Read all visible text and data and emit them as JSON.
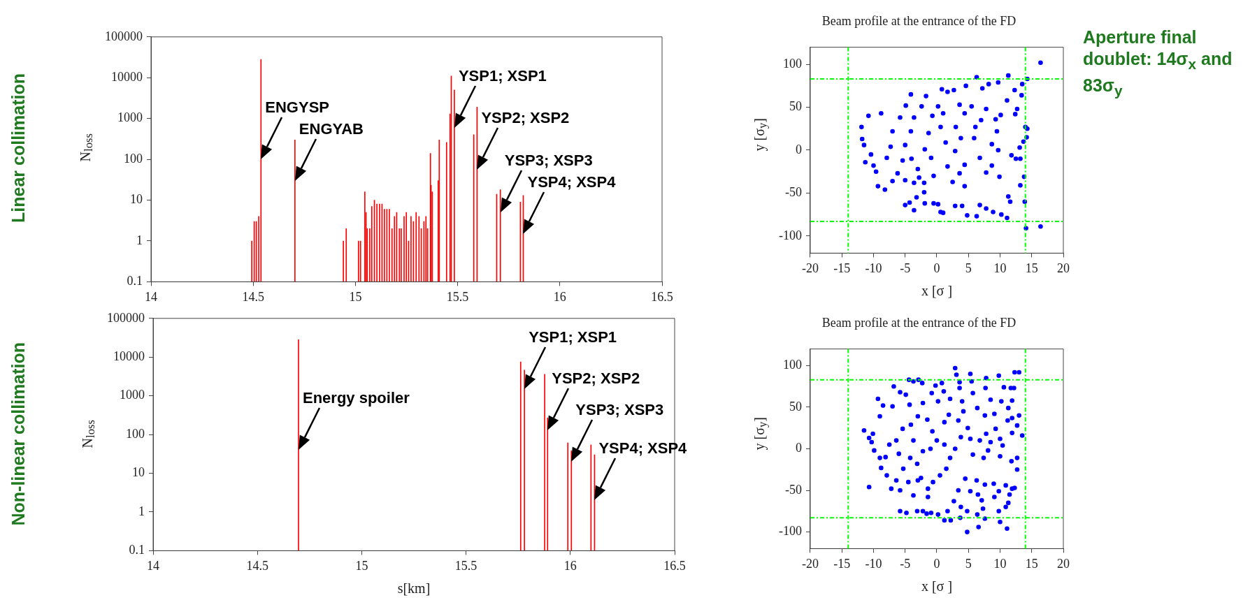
{
  "chart_data": [
    {
      "type": "bar",
      "ylabel": "N$_{loss}$",
      "log": true,
      "color": "#ff0000",
      "x": [
        14.493,
        14.505,
        14.515,
        14.527,
        14.538,
        14.704,
        14.941,
        14.955,
        15.015,
        15.025,
        15.046,
        15.052,
        15.058,
        15.07,
        15.08,
        15.093,
        15.105,
        15.118,
        15.13,
        15.142,
        15.154,
        15.166,
        15.179,
        15.191,
        15.202,
        15.215,
        15.224,
        15.238,
        15.249,
        15.26,
        15.272,
        15.284,
        15.297,
        15.311,
        15.322,
        15.335,
        15.345,
        15.353,
        15.367,
        15.37,
        15.376,
        15.405,
        15.41,
        15.446,
        15.463,
        15.469,
        15.484,
        15.579,
        15.595,
        15.691,
        15.709,
        15.807,
        15.821
      ],
      "values": [
        1,
        3,
        3,
        4,
        28000,
        300,
        1,
        2,
        1,
        1,
        16,
        5,
        2,
        2,
        7,
        10,
        8,
        8,
        8,
        6,
        6,
        6,
        2,
        4,
        5,
        2,
        2,
        4,
        5,
        1,
        4,
        3,
        5,
        4,
        2,
        3,
        4,
        2,
        140,
        23,
        16,
        30,
        300,
        260,
        1300,
        11000,
        5000,
        400,
        1900,
        14,
        18,
        9,
        13
      ],
      "xlim": [
        14,
        16.5
      ],
      "xticks": [
        14,
        14.5,
        15,
        15.5,
        16,
        16.5
      ],
      "ylim": [
        0.1,
        100000
      ],
      "yticks": [
        0.1,
        1,
        10,
        100,
        1000,
        10000,
        100000
      ],
      "annotations": [
        {
          "text": "ENGYSP",
          "x": 14.538,
          "y": 100
        },
        {
          "text": "ENGYAB",
          "x": 14.704,
          "y": 30
        },
        {
          "text": "YSP1; XSP1",
          "x": 15.484,
          "y": 600
        },
        {
          "text": "YSP2; XSP2",
          "x": 15.595,
          "y": 55
        },
        {
          "text": "YSP3; XSP3",
          "x": 15.709,
          "y": 5
        },
        {
          "text": "YSP4; XSP4",
          "x": 15.821,
          "y": 1.5
        },
        "Linear collimation"
      ]
    },
    {
      "type": "bar",
      "ylabel": "N$_{loss}$",
      "xlabel": "s[km]",
      "log": true,
      "color": "#ff0000",
      "x": [
        14.697,
        15.762,
        15.78,
        15.877,
        15.891,
        15.988,
        16.005,
        16.099,
        16.116
      ],
      "values": [
        28000,
        7500,
        4600,
        3600,
        270,
        61,
        38,
        54,
        30
      ],
      "xlim": [
        14,
        16.5
      ],
      "xticks": [
        14,
        14.5,
        15,
        15.5,
        16,
        16.5
      ],
      "ylim": [
        0.1,
        100000
      ],
      "yticks": [
        0.1,
        1,
        10,
        100,
        1000,
        10000,
        100000
      ],
      "annotations": [
        {
          "text": "Energy spoiler",
          "x": 14.697,
          "y": 40
        },
        {
          "text": "YSP1; XSP1",
          "x": 15.78,
          "y": 1500
        },
        {
          "text": "YSP2; XSP2",
          "x": 15.891,
          "y": 130
        },
        {
          "text": "YSP3; XSP3",
          "x": 16.005,
          "y": 20
        },
        {
          "text": "YSP4; XSP4",
          "x": 16.116,
          "y": 2
        },
        "Non-linear collimation"
      ]
    },
    {
      "type": "scatter",
      "title": "Beam profile at the entrance of the FD",
      "xlabel": "x [σ ]",
      "ylabel": "y [σ$_{y}$]",
      "color": "#0000ff",
      "marker": "circle",
      "x": [
        16.4,
        11.3,
        6.3,
        14.3,
        13.5,
        9.7,
        13.4,
        12.3,
        8.2,
        4.6,
        0.8,
        1.7,
        2.7,
        -4.1,
        -1.7,
        7.2,
        14,
        14.3,
        14.2,
        13.7,
        -11.9,
        -11.8,
        -11.5,
        -11.3,
        -10.8,
        -10.4,
        -10,
        -9.6,
        -9.3,
        -8.8,
        -8.2,
        -7,
        -6.2,
        -5,
        -4.3,
        -3.6,
        -3.2,
        -2,
        -1.9,
        -0.5,
        0.2,
        0.6,
        1,
        2.9,
        4,
        4.8,
        6.3,
        6.8,
        7.8,
        8.9,
        10.2,
        11.1,
        11.3,
        11.6,
        13.9,
        14.1,
        16.4,
        13.8,
        13.2,
        13.2,
        13.1,
        12.5,
        11.8,
        12.4,
        11.1,
        12.7,
        10.1,
        9.3,
        9.5,
        8.7,
        9.7,
        8.7,
        9.9,
        7.8,
        6.8,
        5.9,
        6.1,
        7,
        7.8,
        5.5,
        4.4,
        3.6,
        3,
        3.8,
        2.9,
        4.4,
        3.6,
        2.5,
        4.4,
        1.7,
        1.4,
        0.6,
        1,
        0.2,
        -0.7,
        -1.3,
        -1.9,
        -0.9,
        -0.5,
        -2,
        -3,
        -4,
        -5,
        -4.1,
        -3.6,
        -2.4,
        -4.9,
        -5.8,
        -7,
        -7.3,
        -7.9,
        -5.4,
        -5,
        -3.6,
        -2.8
      ],
      "values": [
        102,
        87,
        85,
        83,
        77,
        79,
        64,
        70,
        77,
        75,
        71,
        68,
        70,
        65,
        63,
        72,
        27,
        25,
        15,
        10,
        27,
        13,
        6,
        -14,
        40,
        -5,
        -18,
        -25,
        -42,
        43,
        -46,
        -36,
        -27,
        -64,
        -61,
        -70,
        -55,
        -49,
        -62,
        -62,
        -63,
        -72,
        -73,
        -65,
        -65,
        -76,
        -77,
        -64,
        -68,
        -72,
        -75,
        -79,
        -54,
        -60,
        -60,
        -91,
        -89,
        -31,
        -41,
        -10,
        3,
        -10,
        -6,
        42,
        58,
        48,
        41,
        36,
        22,
        7,
        0,
        -18,
        -31,
        -26,
        -9,
        14,
        27,
        35,
        48,
        51,
        43,
        53,
        27,
        14,
        -1,
        -17,
        -27,
        -37,
        -42,
        -19,
        9,
        27,
        43,
        51,
        40,
        20,
        1,
        -9,
        -30,
        -38,
        -22,
        -10,
        6,
        22,
        38,
        51,
        52,
        38,
        22,
        4,
        -9,
        -12,
        -35,
        -38,
        -32
      ],
      "xlim": [
        -20,
        20
      ],
      "xticks": [
        -20,
        -15,
        -10,
        -5,
        0,
        5,
        10,
        15,
        20
      ],
      "ylim": [
        -120,
        120
      ],
      "yticks": [
        -100,
        -50,
        0,
        50,
        100
      ],
      "ref_lines": [
        {
          "axis": "x",
          "value": -14,
          "color": "#00ff00",
          "line_style": "dashed"
        },
        {
          "axis": "x",
          "value": 14,
          "color": "#00ff00",
          "line_style": "dashed"
        },
        {
          "axis": "y",
          "value": 83,
          "color": "#00ff00",
          "line_style": "dashed"
        },
        {
          "axis": "y",
          "value": -83,
          "color": "#00ff00",
          "line_style": "dashed"
        }
      ],
      "annotations": [
        "Aperture final doublet: 14σ$_{x}$  and 83σ$_{y}$"
      ]
    },
    {
      "type": "scatter",
      "title": "Beam profile at the entrance of the FD",
      "xlabel": "x [σ ]",
      "ylabel": "y [σ$_{y}$]",
      "color": "#0000ff",
      "marker": "circle",
      "x": [
        2.9,
        3.1,
        5.3,
        5.5,
        7.8,
        9.8,
        12.3,
        13,
        -4.4,
        -2.9,
        -3.7,
        -2.3,
        0.8,
        -0.2,
        -6.8,
        3.6,
        3.6,
        7.7,
        10.6,
        11.7,
        12.2,
        -9.3,
        -5.8,
        -4.9,
        -0.8,
        1.1,
        5.7,
        8.5,
        11.9,
        10.2,
        -8.5,
        -7,
        -4.3,
        -2.2,
        0.2,
        2.1,
        4,
        6.4,
        11.3,
        13,
        11.9,
        11.2,
        11.9,
        13.5,
        12.7,
        -11.5,
        -10.1,
        -10.7,
        -10.3,
        -9.9,
        -9,
        -9,
        -8.8,
        -10.7,
        -8.1,
        -7.2,
        -5.8,
        -5.8,
        -4.8,
        -3.1,
        -2.2,
        -1.6,
        -0.9,
        0.2,
        1.2,
        2.2,
        1.7,
        4.8,
        6.6,
        11.1,
        10,
        7.6,
        3.7,
        4.8,
        6.4,
        7.3,
        9.8,
        10.9,
        11.3,
        11.5,
        11.9,
        12.3,
        10.9,
        9.8,
        9,
        7.6,
        6.3,
        5.3,
        4.5,
        3.4,
        2.7,
        3.8,
        6.5,
        7.1,
        9.1,
        12.7,
        12.7,
        11.8,
        10,
        10.4,
        10,
        8.1,
        8.5,
        6.8,
        7.4,
        5.7,
        5.3,
        4.9,
        3.8,
        2.9,
        2.1,
        1.5,
        0.5,
        -0.6,
        -1.4,
        -1.4,
        -2.5,
        -3.1,
        -4.2,
        -5.3,
        -6,
        -6.4,
        -5.4,
        -4.1,
        -3,
        -1.5,
        -0.7,
        0,
        1.2,
        1.9,
        3.4,
        4.2,
        7.6,
        9.1,
        9.3,
        7.8,
        -2.2,
        -1,
        1.2,
        -3.7,
        -7.5,
        -7.9,
        -6.4,
        -4.5,
        -3.7,
        -3
      ],
      "values": [
        97,
        89,
        90,
        81,
        85,
        88,
        92,
        92,
        83,
        83,
        81,
        79,
        79,
        76,
        75,
        80,
        73,
        73,
        74,
        73,
        73,
        60,
        68,
        65,
        67,
        69,
        67,
        59,
        58,
        57,
        52,
        51,
        53,
        55,
        57,
        60,
        57,
        49,
        49,
        40,
        37,
        34,
        19,
        16,
        28,
        22,
        18,
        13,
        8,
        -2,
        39,
        -11,
        -23,
        -46,
        -10,
        -48,
        -50,
        -75,
        -77,
        -75,
        -75,
        -78,
        -77,
        -79,
        -86,
        -86,
        -75,
        -100,
        -94,
        -96,
        -88,
        -84,
        -83,
        -75,
        -79,
        -72,
        -75,
        -70,
        -65,
        -55,
        -48,
        -47,
        -44,
        -51,
        -42,
        -43,
        -38,
        -51,
        -36,
        -50,
        -63,
        -70,
        -55,
        -62,
        -58,
        -25,
        -11,
        -15,
        -9,
        4,
        12,
        -2,
        8,
        10,
        -11,
        -7,
        12,
        25,
        14,
        0,
        -11,
        -24,
        -32,
        -40,
        -48,
        -58,
        -35,
        -18,
        -11,
        -24,
        -6,
        10,
        24,
        29,
        39,
        35,
        21,
        10,
        32,
        41,
        34,
        45,
        40,
        42,
        24,
        18,
        -3,
        0,
        5,
        10,
        5,
        -32,
        -38,
        -40,
        -56,
        -38
      ],
      "xlim": [
        -20,
        20
      ],
      "xticks": [
        -20,
        -15,
        -10,
        -5,
        0,
        5,
        10,
        15,
        20
      ],
      "ylim": [
        -120,
        120
      ],
      "yticks": [
        -100,
        -50,
        0,
        50,
        100
      ],
      "ref_lines": [
        {
          "axis": "x",
          "value": -14,
          "color": "#00ff00",
          "line_style": "dashed"
        },
        {
          "axis": "x",
          "value": 14,
          "color": "#00ff00",
          "line_style": "dashed"
        },
        {
          "axis": "y",
          "value": 83,
          "color": "#00ff00",
          "line_style": "dashed"
        },
        {
          "axis": "y",
          "value": -83,
          "color": "#00ff00",
          "line_style": "dashed"
        }
      ]
    }
  ]
}
